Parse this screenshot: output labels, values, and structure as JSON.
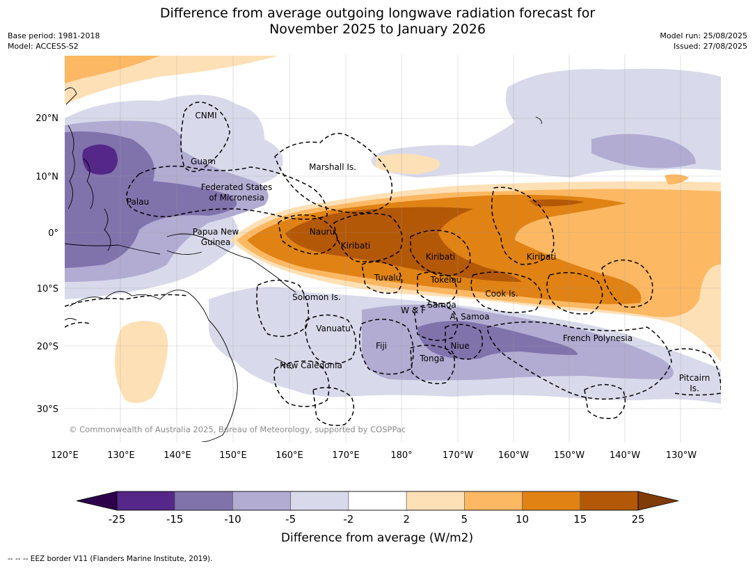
{
  "title_line1": "Difference from average outgoing longwave radiation forecast for",
  "title_line2": "November 2025 to January 2026",
  "meta": {
    "base_period": "Base period: 1981-2018",
    "model": "Model: ACCESS-S2",
    "model_run": "Model run: 25/08/2025",
    "issued": "Issued: 27/08/2025"
  },
  "axes": {
    "lon_labels": [
      "120°E",
      "130°E",
      "140°E",
      "150°E",
      "160°E",
      "170°E",
      "180°",
      "170°W",
      "160°W",
      "150°W",
      "140°W",
      "130°W"
    ],
    "lat_labels": [
      "20°N",
      "10°N",
      "0°",
      "10°S",
      "20°S",
      "30°S"
    ]
  },
  "places": [
    {
      "id": "cnmi",
      "line1": "CNMI",
      "line2": ""
    },
    {
      "id": "guam",
      "line1": "Guam",
      "line2": ""
    },
    {
      "id": "marshall",
      "line1": "Marshall Is.",
      "line2": ""
    },
    {
      "id": "fsm",
      "line1": "Federated States",
      "line2": "of Micronesia"
    },
    {
      "id": "palau",
      "line1": "Palau",
      "line2": ""
    },
    {
      "id": "png",
      "line1": "Papua New",
      "line2": "Guinea"
    },
    {
      "id": "nauru",
      "line1": "Nauru",
      "line2": ""
    },
    {
      "id": "kiribati1",
      "line1": "Kiribati",
      "line2": ""
    },
    {
      "id": "kiribati2",
      "line1": "Kiribati",
      "line2": ""
    },
    {
      "id": "kiribati3",
      "line1": "Kiribati",
      "line2": ""
    },
    {
      "id": "tuvalu",
      "line1": "Tuvalu",
      "line2": ""
    },
    {
      "id": "tokelau",
      "line1": "Tokelau",
      "line2": ""
    },
    {
      "id": "cook",
      "line1": "Cook Is.",
      "line2": ""
    },
    {
      "id": "solomon",
      "line1": "Solomon Is.",
      "line2": ""
    },
    {
      "id": "samoa",
      "line1": "Samoa",
      "line2": ""
    },
    {
      "id": "wf",
      "line1": "W & F",
      "line2": ""
    },
    {
      "id": "asamoa",
      "line1": "A. Samoa",
      "line2": ""
    },
    {
      "id": "vanuatu",
      "line1": "Vanuatu",
      "line2": ""
    },
    {
      "id": "fiji",
      "line1": "Fiji",
      "line2": ""
    },
    {
      "id": "niue",
      "line1": "Niue",
      "line2": ""
    },
    {
      "id": "tonga",
      "line1": "Tonga",
      "line2": ""
    },
    {
      "id": "frpoly",
      "line1": "French Polynesia",
      "line2": ""
    },
    {
      "id": "newcal",
      "line1": "New Caledonia",
      "line2": ""
    },
    {
      "id": "pitcairn",
      "line1": "Pitcairn",
      "line2": "Is."
    }
  ],
  "copyright": "© Commonwealth of Australia 2025, Bureau of Meteorology, supported by COSPPac",
  "colorbar": {
    "label": "Difference from average (W/m2)",
    "ticks": [
      "-25",
      "-15",
      "-10",
      "-5",
      "-2",
      "2",
      "5",
      "10",
      "15",
      "25"
    ],
    "colors": [
      "#2d004b",
      "#542788",
      "#8073ac",
      "#b2abd2",
      "#d8daeb",
      "#ffffff",
      "#fee0b6",
      "#fdb863",
      "#e08214",
      "#b35806",
      "#7f3b08"
    ]
  },
  "footer": "--  --  -- EEZ border V11 (Flanders Marine Institute, 2019)."
}
